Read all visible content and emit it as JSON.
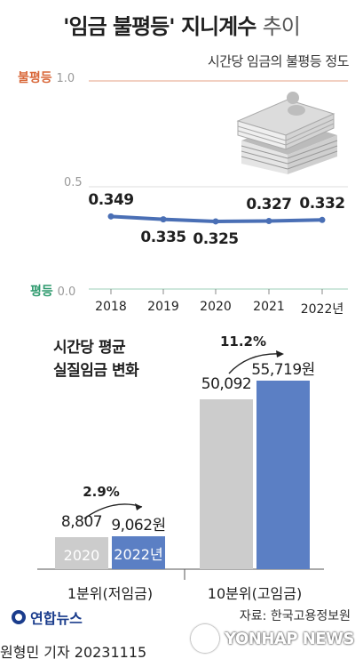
{
  "header": {
    "title_main": "'임금 불평등' 지니계수",
    "title_suffix": "추이",
    "subtitle": "시간당 임금의 불평등 정도"
  },
  "line_axis": {
    "top_label": "불평등",
    "top_value": "1.0",
    "mid_value": "0.5",
    "bottom_label": "평등",
    "bottom_value": "0.0"
  },
  "bar_title": [
    "시간당 평균",
    "실질임금 변화"
  ],
  "footer": {
    "logo": "연합뉴스",
    "source": "자료: 한국고용정보원",
    "reporter": "원형민 기자  20231115",
    "watermark": "YONHAP NEWS"
  },
  "colors": {
    "line": "#4a6fb5",
    "unequal": "#d9683a",
    "equal": "#2e9a6e",
    "bar_2020": "#cccccc",
    "bar_2022": "#5b7fc4"
  },
  "chart_data": [
    {
      "type": "line",
      "x": [
        "2018",
        "2019",
        "2020",
        "2021",
        "2022년"
      ],
      "values": [
        0.349,
        0.335,
        0.325,
        0.327,
        0.332
      ],
      "labels": [
        "0.349",
        "0.335",
        "0.325",
        "0.327",
        "0.332"
      ],
      "ylim": [
        0.0,
        1.0
      ]
    },
    {
      "type": "bar",
      "groups": [
        "1분위(저임금)",
        "10분위(고임금)"
      ],
      "series": [
        {
          "name": "2020",
          "values": [
            8807,
            50092
          ],
          "labels": [
            "8,807",
            "50,092"
          ]
        },
        {
          "name": "2022년",
          "values": [
            9062,
            55719
          ],
          "labels": [
            "9,062원",
            "55,719원"
          ]
        }
      ],
      "growth": [
        "2.9%",
        "11.2%"
      ]
    }
  ]
}
